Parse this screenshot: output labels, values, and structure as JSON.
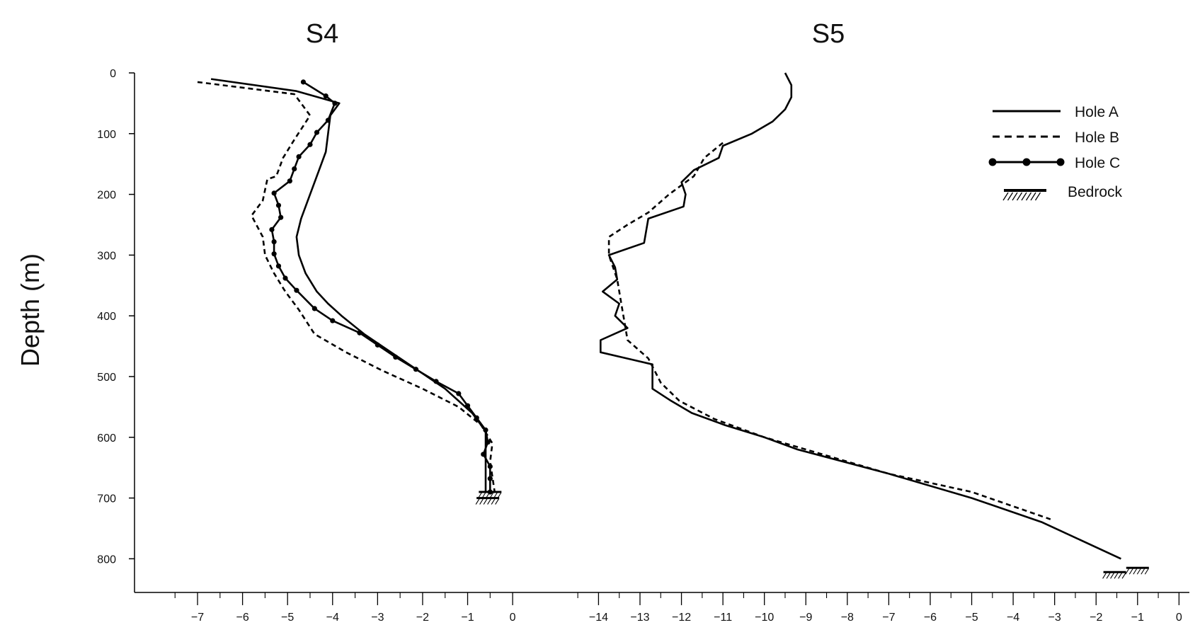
{
  "chart_data": {
    "type": "line",
    "ylabel": "Depth (m)",
    "y_axis": {
      "range": [
        0,
        860
      ],
      "inverted": true,
      "ticks": [
        0,
        100,
        200,
        300,
        400,
        500,
        600,
        700,
        800
      ]
    },
    "legend": {
      "placement": "top-right",
      "entries": [
        {
          "label": "Hole A",
          "style": "solid"
        },
        {
          "label": "Hole B",
          "style": "dashed"
        },
        {
          "label": "Hole C",
          "style": "solid-dots"
        },
        {
          "label": "Bedrock",
          "style": "hatched"
        }
      ]
    },
    "panels": [
      {
        "title": "S4",
        "x_range": [
          -8.4,
          0.25
        ],
        "x_ticks": [
          -7,
          -6,
          -5,
          -4,
          -3,
          -2,
          -1,
          0
        ],
        "series": [
          {
            "name": "Hole A",
            "style": "solid",
            "points": [
              [
                -6.7,
                10
              ],
              [
                -4.8,
                30
              ],
              [
                -3.85,
                50
              ],
              [
                -4.05,
                70
              ],
              [
                -4.1,
                100
              ],
              [
                -4.15,
                130
              ],
              [
                -4.3,
                160
              ],
              [
                -4.5,
                200
              ],
              [
                -4.7,
                240
              ],
              [
                -4.8,
                270
              ],
              [
                -4.75,
                300
              ],
              [
                -4.6,
                330
              ],
              [
                -4.35,
                360
              ],
              [
                -4.1,
                380
              ],
              [
                -3.8,
                400
              ],
              [
                -3.3,
                430
              ],
              [
                -2.7,
                460
              ],
              [
                -2.1,
                490
              ],
              [
                -1.5,
                520
              ],
              [
                -0.9,
                560
              ],
              [
                -0.6,
                590
              ],
              [
                -0.6,
                620
              ],
              [
                -0.6,
                650
              ],
              [
                -0.6,
                690
              ]
            ]
          },
          {
            "name": "Hole B",
            "style": "dashed",
            "points": [
              [
                -7.0,
                15
              ],
              [
                -4.85,
                35
              ],
              [
                -4.5,
                70
              ],
              [
                -4.85,
                110
              ],
              [
                -5.1,
                140
              ],
              [
                -5.25,
                170
              ],
              [
                -5.45,
                175
              ],
              [
                -5.55,
                210
              ],
              [
                -5.8,
                235
              ],
              [
                -5.55,
                270
              ],
              [
                -5.5,
                300
              ],
              [
                -5.3,
                330
              ],
              [
                -5.05,
                360
              ],
              [
                -4.75,
                390
              ],
              [
                -4.4,
                430
              ],
              [
                -3.7,
                460
              ],
              [
                -2.9,
                490
              ],
              [
                -2.0,
                520
              ],
              [
                -1.2,
                550
              ],
              [
                -0.7,
                580
              ],
              [
                -0.45,
                610
              ],
              [
                -0.5,
                640
              ],
              [
                -0.4,
                690
              ]
            ]
          },
          {
            "name": "Hole C",
            "style": "solid-dots",
            "points": [
              [
                -4.65,
                15
              ],
              [
                -4.15,
                38
              ],
              [
                -3.95,
                50
              ],
              [
                -4.1,
                78
              ],
              [
                -4.35,
                98
              ],
              [
                -4.5,
                118
              ],
              [
                -4.75,
                138
              ],
              [
                -4.85,
                158
              ],
              [
                -4.95,
                178
              ],
              [
                -5.3,
                198
              ],
              [
                -5.2,
                218
              ],
              [
                -5.15,
                238
              ],
              [
                -5.35,
                258
              ],
              [
                -5.3,
                278
              ],
              [
                -5.3,
                298
              ],
              [
                -5.2,
                318
              ],
              [
                -5.05,
                338
              ],
              [
                -4.8,
                358
              ],
              [
                -4.4,
                388
              ],
              [
                -4.0,
                408
              ],
              [
                -3.4,
                428
              ],
              [
                -3.0,
                448
              ],
              [
                -2.6,
                468
              ],
              [
                -2.15,
                488
              ],
              [
                -1.7,
                508
              ],
              [
                -1.2,
                528
              ],
              [
                -1.0,
                548
              ],
              [
                -0.8,
                568
              ],
              [
                -0.6,
                588
              ],
              [
                -0.55,
                608
              ],
              [
                -0.65,
                628
              ],
              [
                -0.5,
                648
              ],
              [
                -0.5,
                668
              ],
              [
                -0.5,
                690
              ]
            ]
          }
        ],
        "bedrock": [
          {
            "x": -0.55,
            "depth": 700
          },
          {
            "x": -0.5,
            "depth": 690
          }
        ]
      },
      {
        "title": "S5",
        "x_range": [
          -15.8,
          0.25
        ],
        "x_ticks": [
          -14,
          -13,
          -12,
          -11,
          -10,
          -9,
          -8,
          -7,
          -6,
          -5,
          -4,
          -3,
          -2,
          -1,
          0
        ],
        "series": [
          {
            "name": "Hole A",
            "style": "solid",
            "points": [
              [
                -9.5,
                0
              ],
              [
                -9.35,
                20
              ],
              [
                -9.35,
                40
              ],
              [
                -9.5,
                60
              ],
              [
                -9.8,
                80
              ],
              [
                -10.3,
                100
              ],
              [
                -11.0,
                120
              ],
              [
                -11.1,
                140
              ],
              [
                -11.7,
                160
              ],
              [
                -12.0,
                180
              ],
              [
                -11.9,
                200
              ],
              [
                -11.95,
                220
              ],
              [
                -12.8,
                240
              ],
              [
                -12.9,
                280
              ],
              [
                -13.75,
                300
              ],
              [
                -13.6,
                320
              ],
              [
                -13.55,
                340
              ],
              [
                -13.9,
                360
              ],
              [
                -13.5,
                380
              ],
              [
                -13.6,
                400
              ],
              [
                -13.3,
                420
              ],
              [
                -13.95,
                440
              ],
              [
                -13.95,
                460
              ],
              [
                -12.7,
                480
              ],
              [
                -12.7,
                500
              ],
              [
                -12.7,
                520
              ],
              [
                -12.25,
                540
              ],
              [
                -11.75,
                560
              ],
              [
                -10.95,
                580
              ],
              [
                -10.0,
                600
              ],
              [
                -9.2,
                620
              ],
              [
                -7.0,
                660
              ],
              [
                -5.0,
                700
              ],
              [
                -3.3,
                740
              ],
              [
                -1.4,
                800
              ]
            ]
          },
          {
            "name": "Hole B",
            "style": "dashed",
            "points": [
              [
                -11.0,
                115
              ],
              [
                -11.45,
                140
              ],
              [
                -11.7,
                170
              ],
              [
                -12.3,
                200
              ],
              [
                -12.8,
                230
              ],
              [
                -13.3,
                250
              ],
              [
                -13.75,
                270
              ],
              [
                -13.75,
                300
              ],
              [
                -13.55,
                340
              ],
              [
                -13.45,
                380
              ],
              [
                -13.35,
                420
              ],
              [
                -13.3,
                440
              ],
              [
                -12.8,
                470
              ],
              [
                -12.65,
                490
              ],
              [
                -12.5,
                510
              ],
              [
                -12.05,
                540
              ],
              [
                -11.2,
                570
              ],
              [
                -10.0,
                600
              ],
              [
                -9.0,
                620
              ],
              [
                -7.0,
                660
              ],
              [
                -5.0,
                690
              ],
              [
                -3.1,
                735
              ]
            ]
          }
        ],
        "bedrock": [
          {
            "x": -1.0,
            "depth": 815
          },
          {
            "x": -1.55,
            "depth": 822
          }
        ]
      }
    ]
  }
}
